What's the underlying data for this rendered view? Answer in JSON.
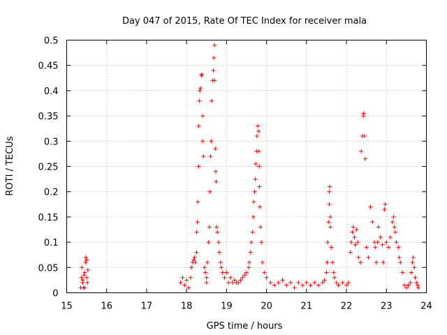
{
  "chart_data": {
    "type": "scatter",
    "title": "Day 047 of 2015, Rate Of TEC Index for receiver mala",
    "xlabel": "GPS time / hours",
    "ylabel": "ROTI / TECUs",
    "xlim": [
      15,
      24
    ],
    "ylim": [
      0,
      0.5
    ],
    "xticks": [
      15,
      16,
      17,
      18,
      19,
      20,
      21,
      22,
      23,
      24
    ],
    "xtick_labels": [
      "15",
      "16",
      "17",
      "18",
      "19",
      "20",
      "21",
      "22",
      "23",
      "24"
    ],
    "yticks": [
      0,
      0.05,
      0.1,
      0.15,
      0.2,
      0.25,
      0.3,
      0.35,
      0.4,
      0.45,
      0.5
    ],
    "ytick_labels": [
      "0",
      "0.05",
      "0.1",
      "0.15",
      "0.2",
      "0.25",
      "0.3",
      "0.35",
      "0.4",
      "0.45",
      "0.5"
    ],
    "grid": true,
    "marker": "+",
    "color": "#ff0000",
    "series": [
      {
        "name": "ROTI",
        "points": [
          [
            15.35,
            0.01
          ],
          [
            15.37,
            0.03
          ],
          [
            15.38,
            0.05
          ],
          [
            15.4,
            0.02
          ],
          [
            15.42,
            0.01
          ],
          [
            15.43,
            0.035
          ],
          [
            15.45,
            0.04
          ],
          [
            15.47,
            0.06
          ],
          [
            15.48,
            0.07
          ],
          [
            15.5,
            0.065
          ],
          [
            15.5,
            0.03
          ],
          [
            15.52,
            0.02
          ],
          [
            15.53,
            0.045
          ],
          [
            15.45,
            0.01
          ],
          [
            15.4,
            0.025
          ],
          [
            17.85,
            0.02
          ],
          [
            17.9,
            0.03
          ],
          [
            17.95,
            0.015
          ],
          [
            18.0,
            0.025
          ],
          [
            18.05,
            0.01
          ],
          [
            18.1,
            0.03
          ],
          [
            18.12,
            0.05
          ],
          [
            18.15,
            0.06
          ],
          [
            18.18,
            0.065
          ],
          [
            18.2,
            0.07
          ],
          [
            18.22,
            0.06
          ],
          [
            18.25,
            0.08
          ],
          [
            18.25,
            0.12
          ],
          [
            18.27,
            0.14
          ],
          [
            18.28,
            0.18
          ],
          [
            18.3,
            0.25
          ],
          [
            18.3,
            0.33
          ],
          [
            18.32,
            0.38
          ],
          [
            18.33,
            0.4
          ],
          [
            18.35,
            0.405
          ],
          [
            18.37,
            0.43
          ],
          [
            18.38,
            0.432
          ],
          [
            18.4,
            0.35
          ],
          [
            18.4,
            0.3
          ],
          [
            18.42,
            0.27
          ],
          [
            18.45,
            0.05
          ],
          [
            18.47,
            0.04
          ],
          [
            18.5,
            0.03
          ],
          [
            18.5,
            0.02
          ],
          [
            18.52,
            0.06
          ],
          [
            18.55,
            0.1
          ],
          [
            18.57,
            0.13
          ],
          [
            18.58,
            0.2
          ],
          [
            18.6,
            0.27
          ],
          [
            18.62,
            0.3
          ],
          [
            18.63,
            0.38
          ],
          [
            18.65,
            0.42
          ],
          [
            18.67,
            0.44
          ],
          [
            18.68,
            0.465
          ],
          [
            18.7,
            0.49
          ],
          [
            18.7,
            0.42
          ],
          [
            18.72,
            0.285
          ],
          [
            18.73,
            0.24
          ],
          [
            18.74,
            0.22
          ],
          [
            18.75,
            0.13
          ],
          [
            18.77,
            0.12
          ],
          [
            18.8,
            0.1
          ],
          [
            18.82,
            0.08
          ],
          [
            18.85,
            0.06
          ],
          [
            18.87,
            0.05
          ],
          [
            18.9,
            0.04
          ],
          [
            18.95,
            0.03
          ],
          [
            19.0,
            0.04
          ],
          [
            19.05,
            0.02
          ],
          [
            19.1,
            0.03
          ],
          [
            19.15,
            0.02
          ],
          [
            19.2,
            0.025
          ],
          [
            19.25,
            0.02
          ],
          [
            19.3,
            0.02
          ],
          [
            19.35,
            0.025
          ],
          [
            19.4,
            0.03
          ],
          [
            19.45,
            0.035
          ],
          [
            19.5,
            0.04
          ],
          [
            19.55,
            0.05
          ],
          [
            19.57,
            0.06
          ],
          [
            19.6,
            0.08
          ],
          [
            19.62,
            0.1
          ],
          [
            19.65,
            0.12
          ],
          [
            19.67,
            0.15
          ],
          [
            19.68,
            0.18
          ],
          [
            19.7,
            0.2
          ],
          [
            19.72,
            0.225
          ],
          [
            19.73,
            0.255
          ],
          [
            19.75,
            0.28
          ],
          [
            19.76,
            0.31
          ],
          [
            19.78,
            0.33
          ],
          [
            19.8,
            0.32
          ],
          [
            19.8,
            0.28
          ],
          [
            19.82,
            0.25
          ],
          [
            19.82,
            0.21
          ],
          [
            19.83,
            0.17
          ],
          [
            19.85,
            0.13
          ],
          [
            19.87,
            0.1
          ],
          [
            19.9,
            0.06
          ],
          [
            19.95,
            0.04
          ],
          [
            20.0,
            0.03
          ],
          [
            20.1,
            0.02
          ],
          [
            20.2,
            0.015
          ],
          [
            20.3,
            0.02
          ],
          [
            20.4,
            0.025
          ],
          [
            20.5,
            0.015
          ],
          [
            20.6,
            0.02
          ],
          [
            20.7,
            0.01
          ],
          [
            20.8,
            0.02
          ],
          [
            20.9,
            0.015
          ],
          [
            21.0,
            0.02
          ],
          [
            21.1,
            0.015
          ],
          [
            21.2,
            0.02
          ],
          [
            21.3,
            0.015
          ],
          [
            21.4,
            0.02
          ],
          [
            21.45,
            0.025
          ],
          [
            21.5,
            0.04
          ],
          [
            21.52,
            0.06
          ],
          [
            21.53,
            0.1
          ],
          [
            21.55,
            0.14
          ],
          [
            21.57,
            0.175
          ],
          [
            21.57,
            0.2
          ],
          [
            21.58,
            0.21
          ],
          [
            21.6,
            0.15
          ],
          [
            21.6,
            0.13
          ],
          [
            21.62,
            0.09
          ],
          [
            21.65,
            0.06
          ],
          [
            21.68,
            0.04
          ],
          [
            21.7,
            0.03
          ],
          [
            21.75,
            0.02
          ],
          [
            21.8,
            0.015
          ],
          [
            21.9,
            0.02
          ],
          [
            22.0,
            0.015
          ],
          [
            22.05,
            0.02
          ],
          [
            22.1,
            0.08
          ],
          [
            22.12,
            0.1
          ],
          [
            22.15,
            0.12
          ],
          [
            22.17,
            0.13
          ],
          [
            22.2,
            0.11
          ],
          [
            22.22,
            0.095
          ],
          [
            22.25,
            0.125
          ],
          [
            22.28,
            0.1
          ],
          [
            22.3,
            0.07
          ],
          [
            22.35,
            0.06
          ],
          [
            22.37,
            0.28
          ],
          [
            22.4,
            0.31
          ],
          [
            22.42,
            0.35
          ],
          [
            22.43,
            0.355
          ],
          [
            22.45,
            0.31
          ],
          [
            22.47,
            0.265
          ],
          [
            22.5,
            0.09
          ],
          [
            22.55,
            0.07
          ],
          [
            22.6,
            0.17
          ],
          [
            22.65,
            0.14
          ],
          [
            22.7,
            0.1
          ],
          [
            22.72,
            0.09
          ],
          [
            22.75,
            0.06
          ],
          [
            22.78,
            0.1
          ],
          [
            22.8,
            0.13
          ],
          [
            22.85,
            0.11
          ],
          [
            22.9,
            0.095
          ],
          [
            22.92,
            0.06
          ],
          [
            22.95,
            0.165
          ],
          [
            22.97,
            0.175
          ],
          [
            23.0,
            0.1
          ],
          [
            23.05,
            0.09
          ],
          [
            23.1,
            0.11
          ],
          [
            23.15,
            0.14
          ],
          [
            23.18,
            0.15
          ],
          [
            23.2,
            0.13
          ],
          [
            23.22,
            0.12
          ],
          [
            23.25,
            0.1
          ],
          [
            23.3,
            0.09
          ],
          [
            23.32,
            0.07
          ],
          [
            23.35,
            0.06
          ],
          [
            23.4,
            0.04
          ],
          [
            23.45,
            0.015
          ],
          [
            23.5,
            0.01
          ],
          [
            23.55,
            0.015
          ],
          [
            23.6,
            0.02
          ],
          [
            23.62,
            0.04
          ],
          [
            23.65,
            0.06
          ],
          [
            23.67,
            0.07
          ],
          [
            23.7,
            0.05
          ],
          [
            23.72,
            0.03
          ],
          [
            23.75,
            0.02
          ],
          [
            23.78,
            0.015
          ],
          [
            23.8,
            0.01
          ]
        ]
      }
    ]
  }
}
